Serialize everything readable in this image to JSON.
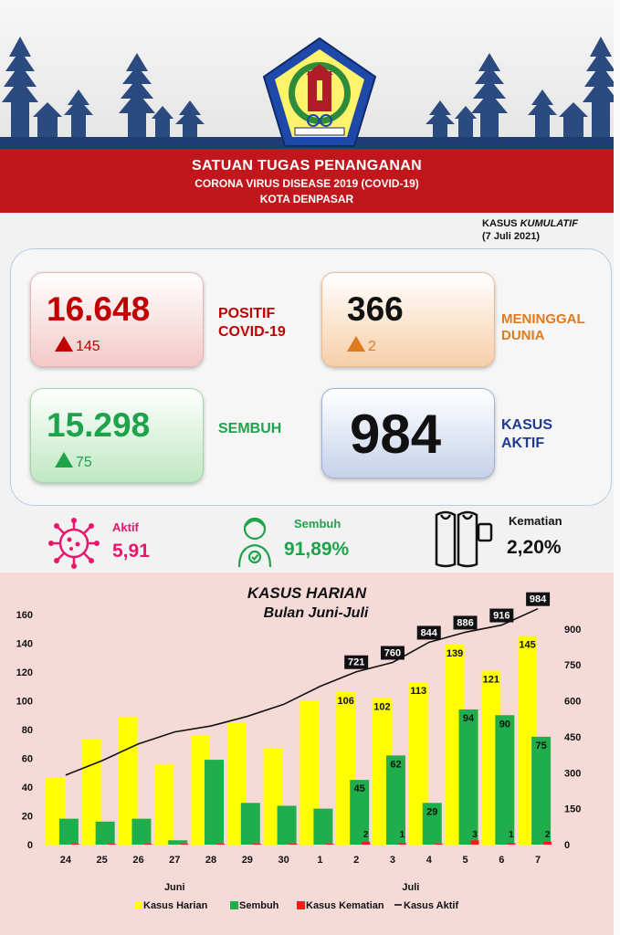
{
  "header": {
    "title": "SATUAN TUGAS PENANGANAN",
    "subtitle": "CORONA VIRUS DISEASE 2019 (COVID-19)",
    "city": "KOTA DENPASAR"
  },
  "cumulative": {
    "label_prefix": "KASUS",
    "label_italic": "KUMULATIF",
    "date": "(7 Juli 2021)"
  },
  "cards": {
    "positif": {
      "value": "16.648",
      "delta": "145",
      "label_1": "POSITIF",
      "label_2": "COVID-19",
      "color": "#c00000"
    },
    "meninggal": {
      "value": "366",
      "delta": "2",
      "label_1": "MENINGGAL",
      "label_2": "DUNIA",
      "color": "#e07a1f"
    },
    "sembuh": {
      "value": "15.298",
      "delta": "75",
      "label_1": "SEMBUH",
      "color": "#1fa34a"
    },
    "aktif": {
      "value": "984",
      "label_1": "KASUS",
      "label_2": "AKTIF",
      "color": "#1f3a93"
    }
  },
  "rates": {
    "aktif": {
      "label": "Aktif",
      "value": "5,91",
      "icon": "virus-icon",
      "color": "#e8176d"
    },
    "sembuh": {
      "label": "Sembuh",
      "value": "91,89%",
      "icon": "recovered-person-icon",
      "color": "#1fa34a"
    },
    "kematian": {
      "label": "Kematian",
      "value": "2,20%",
      "icon": "shroud-icon",
      "color": "#111111"
    }
  },
  "chart_data": {
    "type": "bar",
    "title": "KASUS HARIAN",
    "subtitle": "Bulan Juni-Juli",
    "categories": [
      "24",
      "25",
      "26",
      "27",
      "28",
      "29",
      "30",
      "1",
      "2",
      "3",
      "4",
      "5",
      "6",
      "7"
    ],
    "month_labels": [
      "Juni",
      "Juli"
    ],
    "y_left_ticks": [
      "0",
      "20",
      "40",
      "60",
      "80",
      "100",
      "120",
      "140",
      "160"
    ],
    "y_right_ticks": [
      "0",
      "150",
      "300",
      "450",
      "600",
      "750",
      "900"
    ],
    "ylim_left": [
      0,
      160
    ],
    "ylim_right": [
      0,
      960
    ],
    "series": [
      {
        "name": "Kasus Harian",
        "type": "bar",
        "color": "#ffff00",
        "axis": "left",
        "values": [
          47,
          73,
          89,
          56,
          76,
          85,
          67,
          100,
          106,
          102,
          113,
          139,
          121,
          145
        ],
        "labels": [
          "",
          "",
          "",
          "",
          "",
          "",
          "",
          "",
          "106",
          "102",
          "113",
          "139",
          "121",
          "145"
        ]
      },
      {
        "name": "Sembuh",
        "type": "bar",
        "color": "#1fae4b",
        "axis": "left",
        "values": [
          18,
          16,
          18,
          3,
          59,
          29,
          27,
          25,
          45,
          62,
          29,
          94,
          90,
          75
        ],
        "labels": [
          "",
          "",
          "",
          "",
          "",
          "",
          "",
          "",
          "45",
          "62",
          "29",
          "94",
          "90",
          "75"
        ]
      },
      {
        "name": "Kasus Kematian",
        "type": "bar",
        "color": "#ff1a1a",
        "axis": "left",
        "values": [
          0,
          0,
          0,
          0,
          0,
          0,
          0,
          0,
          2,
          1,
          0,
          3,
          1,
          2
        ],
        "labels": [
          "",
          "",
          "",
          "",
          "",
          "",
          "",
          "",
          "2",
          "1",
          "",
          "3",
          "1",
          "2"
        ]
      },
      {
        "name": "Kasus Aktif",
        "type": "line",
        "color": "#111111",
        "axis": "right",
        "values": [
          290,
          350,
          420,
          470,
          495,
          535,
          585,
          660,
          721,
          760,
          844,
          886,
          916,
          984
        ],
        "labels": [
          "",
          "",
          "",
          "",
          "",
          "",
          "",
          "",
          "721",
          "760",
          "844",
          "886",
          "916",
          "984"
        ]
      }
    ],
    "legend": {
      "placement": "bottom"
    },
    "grid": false
  }
}
